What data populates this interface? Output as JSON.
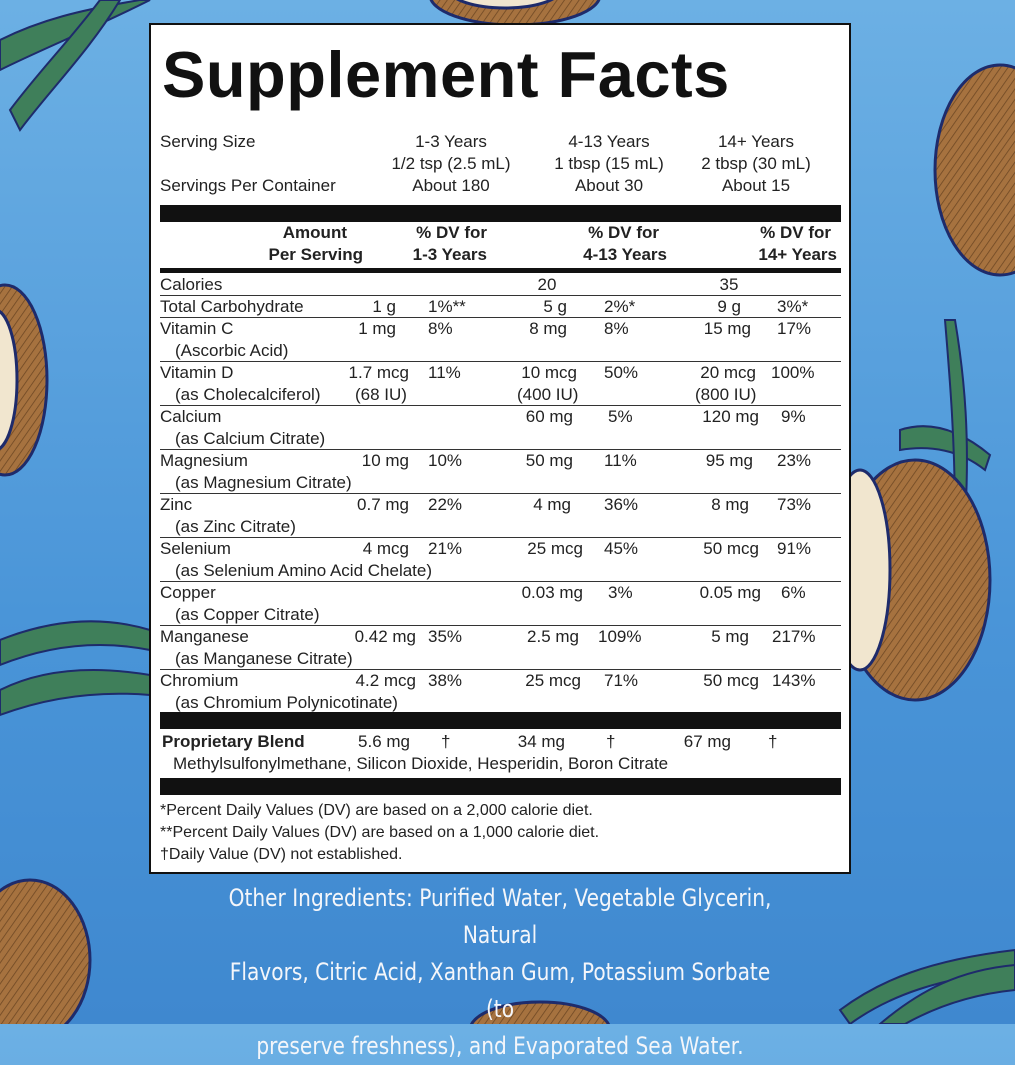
{
  "title": "Supplement Facts",
  "serving": {
    "size_label": "Serving Size",
    "per_container_label": "Servings Per Container",
    "groups": [
      {
        "age": "1-3 Years",
        "size": "1/2 tsp (2.5 mL)",
        "servings": "About 180"
      },
      {
        "age": "4-13 Years",
        "size": "1 tbsp (15 mL)",
        "servings": "About 30"
      },
      {
        "age": "14+ Years",
        "size": "2 tbsp (30 mL)",
        "servings": "About 15"
      }
    ]
  },
  "header": {
    "amount_line1": "Amount",
    "amount_line2": "Per Serving",
    "dv1_line1": "% DV for",
    "dv1_line2": "1-3 Years",
    "dv2_line1": "% DV for",
    "dv2_line2": "4-13 Years",
    "dv3_line1": "% DV for",
    "dv3_line2": "14+ Years"
  },
  "calories": {
    "label": "Calories",
    "v2": "20",
    "v3": "35"
  },
  "nutrients": [
    {
      "name": "Total Carbohydrate",
      "sub": "",
      "a1": "1 g",
      "d1": "1%**",
      "a2": "5 g",
      "d2": "2%*",
      "a3": "9 g",
      "d3": "3%*"
    },
    {
      "name": "Vitamin C",
      "sub": "(Ascorbic Acid)",
      "a1": "1 mg",
      "d1": "8%",
      "a2": "8 mg",
      "d2": "8%",
      "a3": "15 mg",
      "d3": "17%"
    },
    {
      "name": "Vitamin D",
      "sub": "(as Cholecalciferol)",
      "a1": "1.7 mcg",
      "a1b": "(68 IU)",
      "d1": "11%",
      "a2": "10 mcg",
      "a2b": "(400 IU)",
      "d2": "50%",
      "a3": "20 mcg",
      "a3b": "(800 IU)",
      "d3": "100%"
    },
    {
      "name": "Calcium",
      "sub": "(as Calcium Citrate)",
      "a1": "",
      "d1": "",
      "a2": "60 mg",
      "d2": "5%",
      "a3": "120 mg",
      "d3": "9%"
    },
    {
      "name": "Magnesium",
      "sub": "(as Magnesium Citrate)",
      "a1": "10 mg",
      "d1": "10%",
      "a2": "50 mg",
      "d2": "11%",
      "a3": "95 mg",
      "d3": "23%"
    },
    {
      "name": "Zinc",
      "sub": "(as Zinc Citrate)",
      "a1": "0.7 mg",
      "d1": "22%",
      "a2": "4 mg",
      "d2": "36%",
      "a3": "8 mg",
      "d3": "73%"
    },
    {
      "name": "Selenium",
      "sub": "(as Selenium Amino Acid Chelate)",
      "a1": "4 mcg",
      "d1": "21%",
      "a2": "25 mcg",
      "d2": "45%",
      "a3": "50 mcg",
      "d3": "91%"
    },
    {
      "name": "Copper",
      "sub": "(as Copper Citrate)",
      "a1": "",
      "d1": "",
      "a2": "0.03 mg",
      "d2": "3%",
      "a3": "0.05 mg",
      "d3": "6%"
    },
    {
      "name": "Manganese",
      "sub": "(as Manganese Citrate)",
      "a1": "0.42 mg",
      "d1": "35%",
      "a2": "2.5 mg",
      "d2": "109%",
      "a3": "5 mg",
      "d3": "217%"
    },
    {
      "name": "Chromium",
      "sub": "(as Chromium Polynicotinate)",
      "a1": "4.2 mcg",
      "d1": "38%",
      "a2": "25 mcg",
      "d2": "71%",
      "a3": "50 mcg",
      "d3": "143%"
    }
  ],
  "blend": {
    "label": "Proprietary Blend",
    "a1": "5.6 mg",
    "d1": "†",
    "a2": "34 mg",
    "d2": "†",
    "a3": "67 mg",
    "d3": "†",
    "ingredients": "Methylsulfonylmethane, Silicon Dioxide, Hesperidin, Boron Citrate"
  },
  "footnotes": [
    "*Percent Daily Values (DV) are based on a 2,000 calorie diet.",
    "**Percent Daily Values (DV) are based on a 1,000 calorie diet.",
    "†Daily Value (DV) not established."
  ],
  "other_ingredients": [
    "Other Ingredients: Purified Water, Vegetable Glycerin, Natural",
    "Flavors, Citric Acid, Xanthan Gum, Potassium Sorbate (to",
    "preserve freshness), and Evaporated Sea Water."
  ],
  "colors": {
    "background": "#4a95d8",
    "coconut": "#a6723f",
    "leaf": "#3f7f5a",
    "ink": "#1e2b6b"
  }
}
